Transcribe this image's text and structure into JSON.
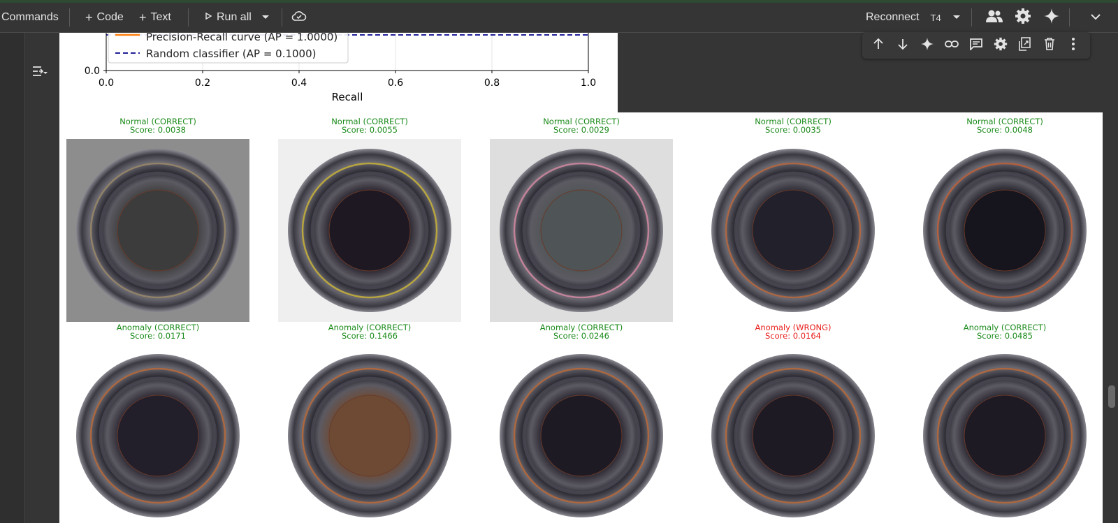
{
  "toolbar": {
    "commands": "Commands",
    "code": "Code",
    "text": "Text",
    "run_all": "Run all",
    "reconnect": "Reconnect",
    "runtime": "T4"
  },
  "plot": {
    "legend": [
      {
        "label": "Precision-Recall curve (AP = 1.0000)",
        "color": "#ff7f0e",
        "style": "solid"
      },
      {
        "label": "Random classifier (AP = 0.1000)",
        "color": "#00008b",
        "style": "dashed"
      }
    ],
    "xlabel": "Recall",
    "y_tick": "0.0",
    "x_ticks": [
      "0.0",
      "0.2",
      "0.4",
      "0.6",
      "0.8",
      "1.0"
    ]
  },
  "samples": [
    {
      "label": "Normal (CORRECT)",
      "score": "Score: 0.0038",
      "status": "correct",
      "bg": "#8d8d8d",
      "tint": "#3c3c3c",
      "rim": "#9a8a6a"
    },
    {
      "label": "Normal (CORRECT)",
      "score": "Score: 0.0055",
      "status": "correct",
      "bg": "#efefef",
      "tint": "#1e1822",
      "rim": "#c8b33a"
    },
    {
      "label": "Normal (CORRECT)",
      "score": "Score: 0.0029",
      "status": "correct",
      "bg": "#dedede",
      "tint": "#4f5556",
      "rim": "#d48aa2"
    },
    {
      "label": "Normal (CORRECT)",
      "score": "Score: 0.0035",
      "status": "correct",
      "bg": "#ffffff",
      "tint": "#22202a",
      "rim": "#b8693e"
    },
    {
      "label": "Normal (CORRECT)",
      "score": "Score: 0.0048",
      "status": "correct",
      "bg": "#ffffff",
      "tint": "#16141c",
      "rim": "#c0623a"
    },
    {
      "label": "Anomaly (CORRECT)",
      "score": "Score: 0.0171",
      "status": "correct",
      "bg": "#ffffff",
      "tint": "#221e2a",
      "rim": "#b86a3a"
    },
    {
      "label": "Anomaly (CORRECT)",
      "score": "Score: 0.1466",
      "status": "correct",
      "bg": "#ffffff",
      "tint": "#6e4a34",
      "rim": "#b86a3a"
    },
    {
      "label": "Anomaly (CORRECT)",
      "score": "Score: 0.0246",
      "status": "correct",
      "bg": "#ffffff",
      "tint": "#1e1a24",
      "rim": "#b86a3a"
    },
    {
      "label": "Anomaly (WRONG)",
      "score": "Score: 0.0164",
      "status": "wrong",
      "bg": "#ffffff",
      "tint": "#1e1a24",
      "rim": "#b86a3a"
    },
    {
      "label": "Anomaly (CORRECT)",
      "score": "Score: 0.0485",
      "status": "correct",
      "bg": "#ffffff",
      "tint": "#1e1a24",
      "rim": "#b86a3a"
    }
  ],
  "colors": {
    "correct": "#1a8a1a",
    "wrong": "#e8201c",
    "toolbar_bg": "#353535"
  }
}
